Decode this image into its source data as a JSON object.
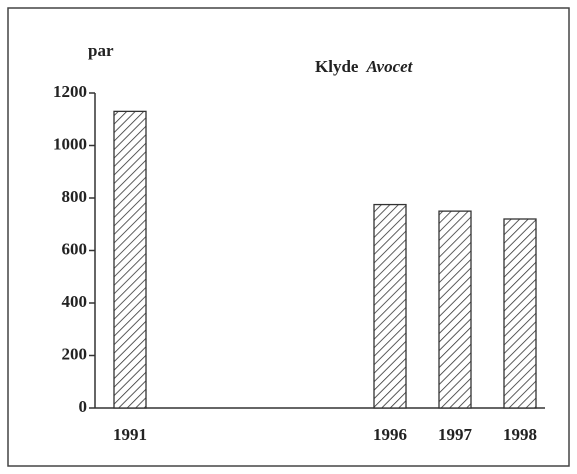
{
  "chart_data": {
    "type": "bar",
    "title": "Klyde",
    "title_latin": "Avocet",
    "y_label": "par",
    "categories": [
      "1991",
      null,
      null,
      null,
      "1996",
      "1997",
      "1998"
    ],
    "values": [
      1130,
      null,
      null,
      null,
      775,
      750,
      720
    ],
    "color": "#333333",
    "ylim": [
      0,
      1200
    ],
    "yticks": [
      0,
      200,
      400,
      600,
      800,
      1000,
      1200
    ],
    "grid": false
  }
}
